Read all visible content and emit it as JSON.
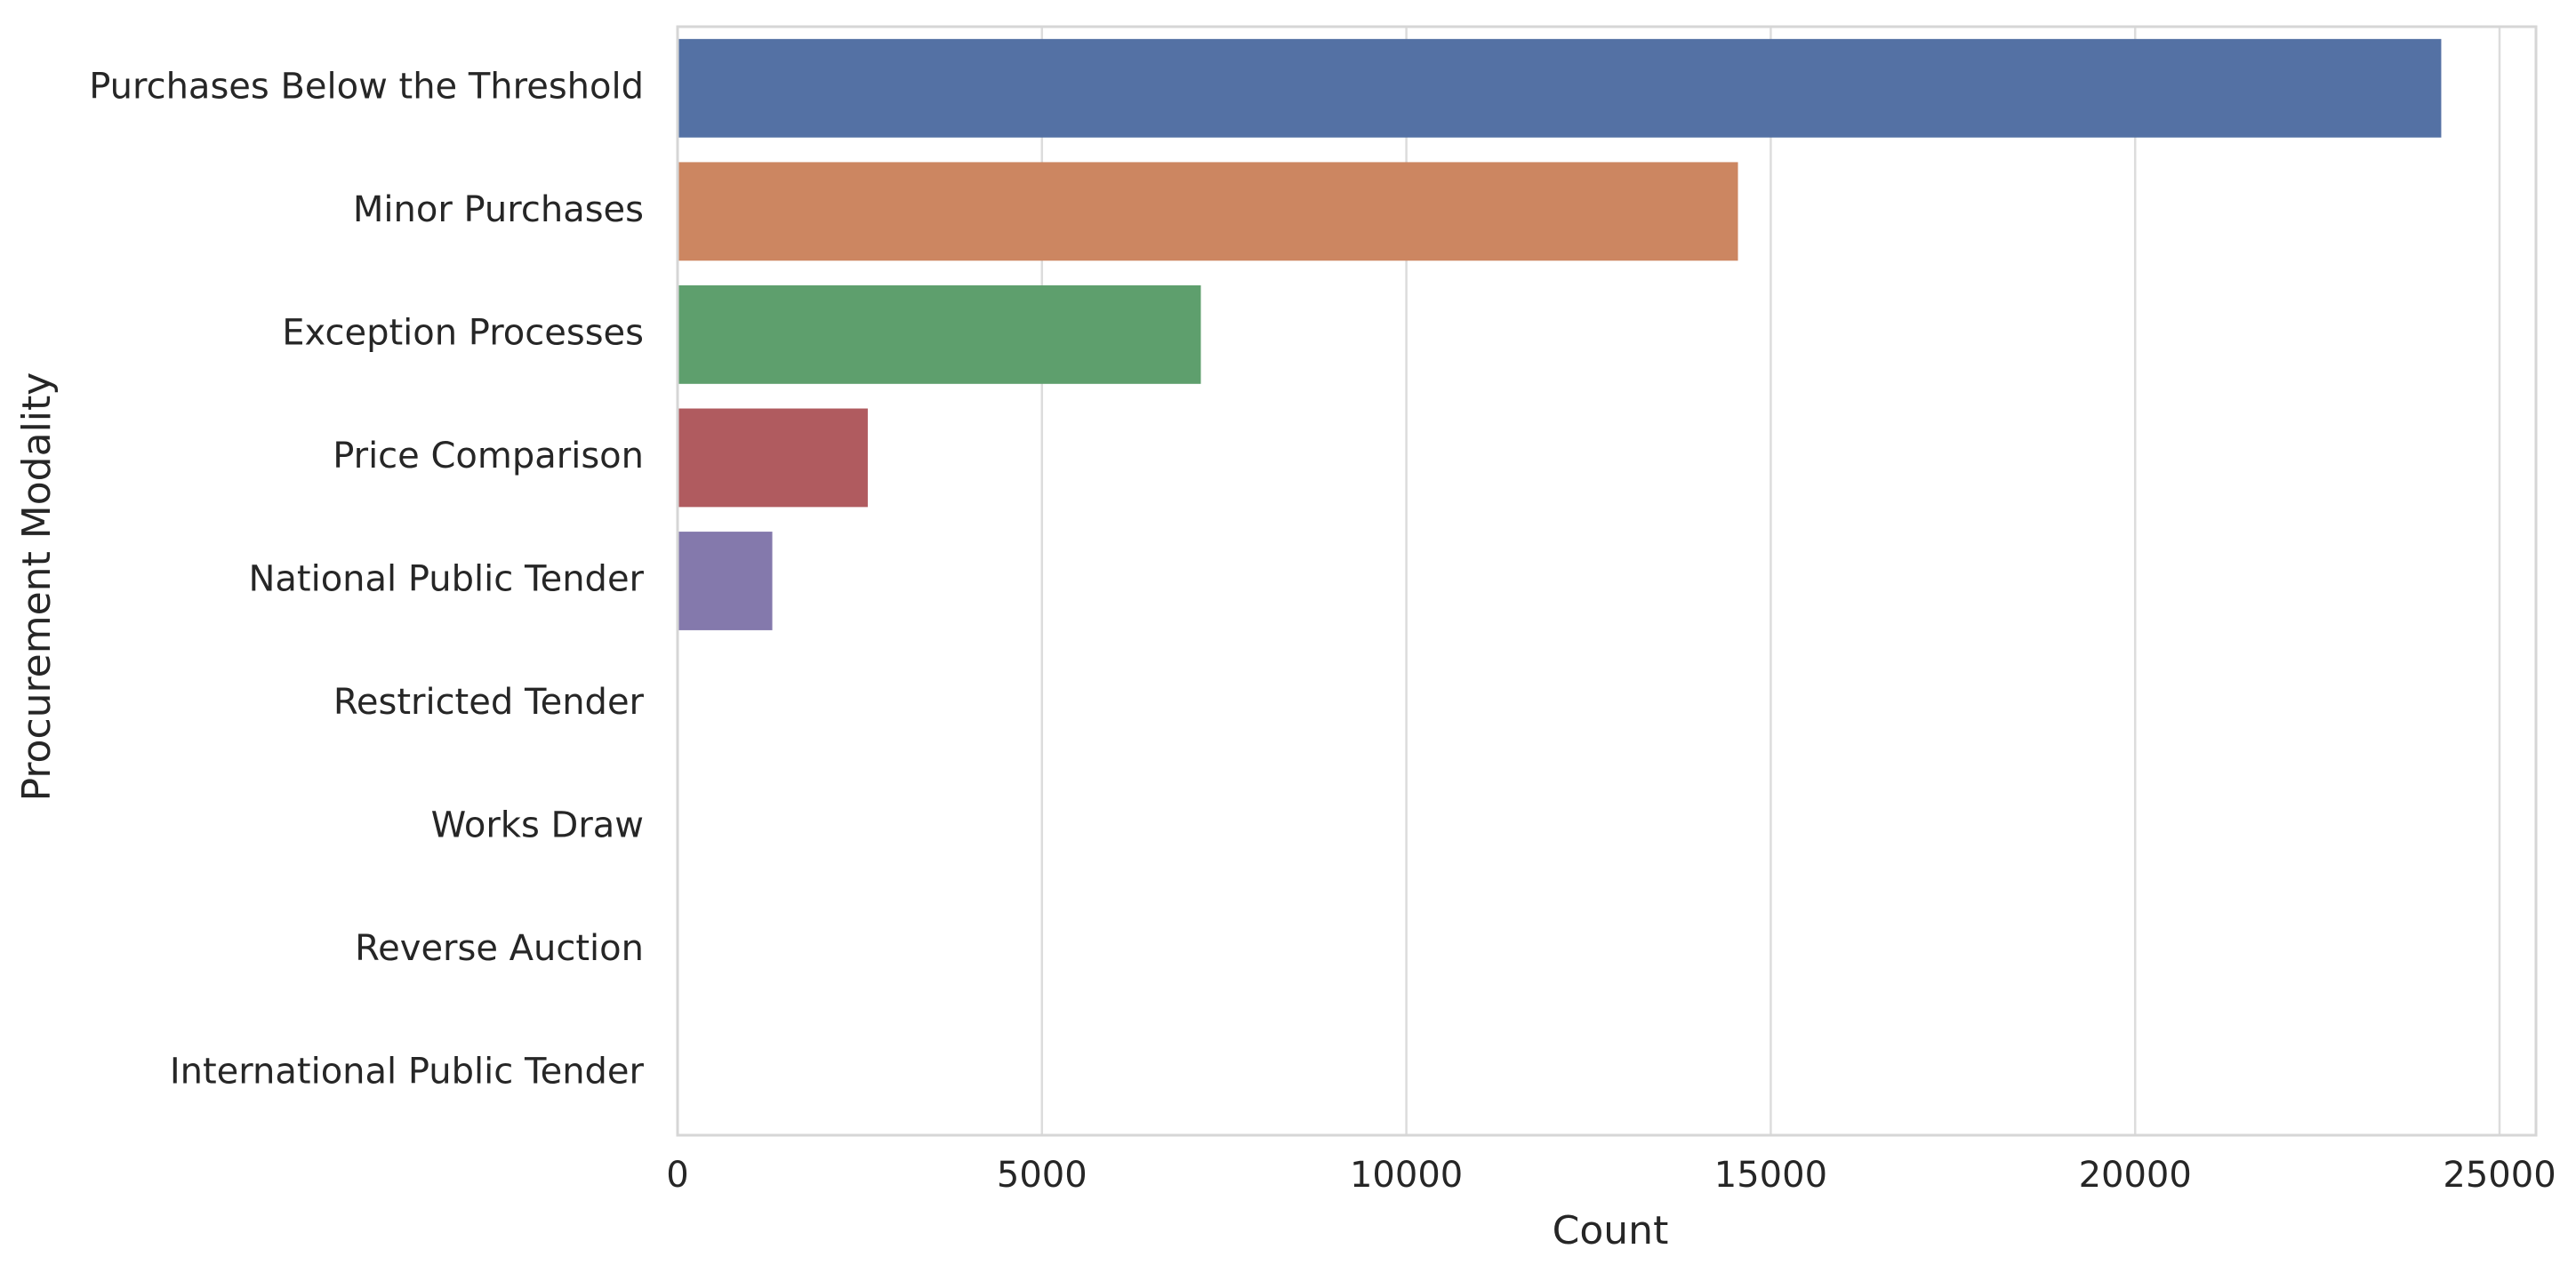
{
  "chart_data": {
    "type": "bar",
    "orientation": "horizontal",
    "title": "",
    "xlabel": "Count",
    "ylabel": "Procurement Modality",
    "categories": [
      "Purchases Below the Threshold",
      "Minor Purchases",
      "Exception Processes",
      "Price Comparison",
      "National Public Tender",
      "Restricted Tender",
      "Works Draw",
      "Reverse Auction",
      "International Public Tender"
    ],
    "values": [
      24200,
      14550,
      7180,
      2610,
      1300,
      0,
      0,
      0,
      0
    ],
    "colors": [
      "#5471a4",
      "#cc8661",
      "#5e9f6d",
      "#b05b5f",
      "#8479ac",
      "#93785f",
      "#d094c4",
      "#8c8c8c",
      "#c4b673"
    ],
    "xlim": [
      0,
      25500
    ],
    "xticks": [
      0,
      5000,
      10000,
      15000,
      20000,
      25000
    ],
    "xtick_labels": [
      "0",
      "5000",
      "10000",
      "15000",
      "20000",
      "25000"
    ],
    "grid": true,
    "grid_axis": "x",
    "legend": "none"
  }
}
